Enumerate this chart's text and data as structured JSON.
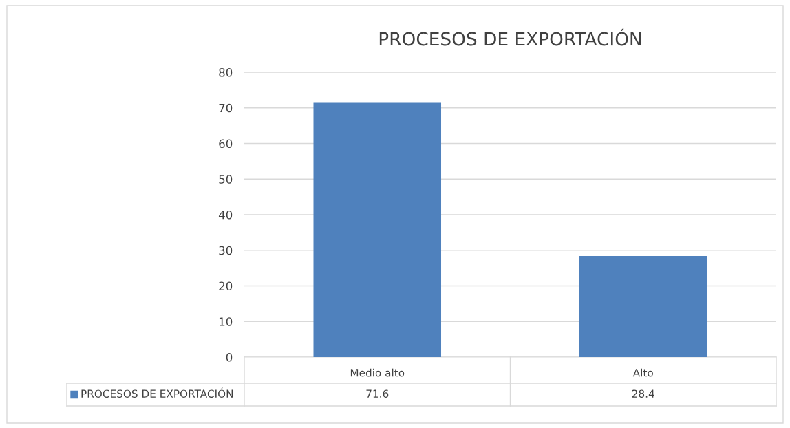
{
  "chart_data": {
    "type": "bar",
    "title": "PROCESOS DE EXPORTACIÓN",
    "categories": [
      "Medio alto",
      "Alto"
    ],
    "series": [
      {
        "name": "PROCESOS DE EXPORTACIÓN",
        "color": "#4f81bd",
        "values": [
          71.6,
          28.4
        ]
      }
    ],
    "ylim": [
      0,
      80
    ],
    "yticks": [
      0,
      10,
      20,
      30,
      40,
      50,
      60,
      70,
      80
    ],
    "grid": "y",
    "data_labels": true
  }
}
